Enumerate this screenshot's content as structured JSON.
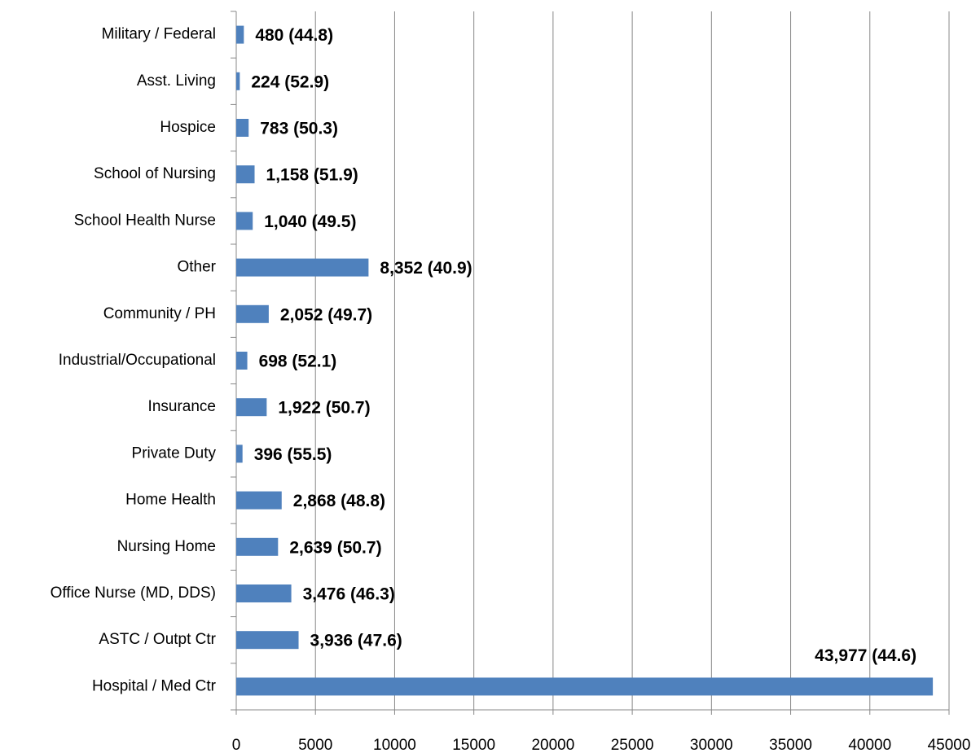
{
  "chart_data": {
    "type": "bar",
    "orientation": "horizontal",
    "categories": [
      "Military / Federal",
      "Asst. Living",
      "Hospice",
      "School of Nursing",
      "School Health Nurse",
      "Other",
      "Community / PH",
      "Industrial/Occupational",
      "Insurance",
      "Private Duty",
      "Home Health",
      "Nursing Home",
      "Office Nurse (MD, DDS)",
      "ASTC / Outpt Ctr",
      "Hospital / Med Ctr"
    ],
    "values": [
      480,
      224,
      783,
      1158,
      1040,
      8352,
      2052,
      698,
      1922,
      396,
      2868,
      2639,
      3476,
      3936,
      43977
    ],
    "value_labels": [
      "480  (44.8)",
      "224  (52.9)",
      "783  (50.3)",
      "1,158  (51.9)",
      "1,040  (49.5)",
      "8,352  (40.9)",
      "2,052  (49.7)",
      "698  (52.1)",
      "1,922  (50.7)",
      "396  (55.5)",
      "2,868  (48.8)",
      "2,639  (50.7)",
      "3,476  (46.3)",
      "3,936  (47.6)",
      "43,977  (44.6)"
    ],
    "color": "#4f81bd",
    "xlim": [
      0,
      45000
    ],
    "xticks": [
      0,
      5000,
      10000,
      15000,
      20000,
      25000,
      30000,
      35000,
      40000,
      45000
    ],
    "grid": true
  }
}
